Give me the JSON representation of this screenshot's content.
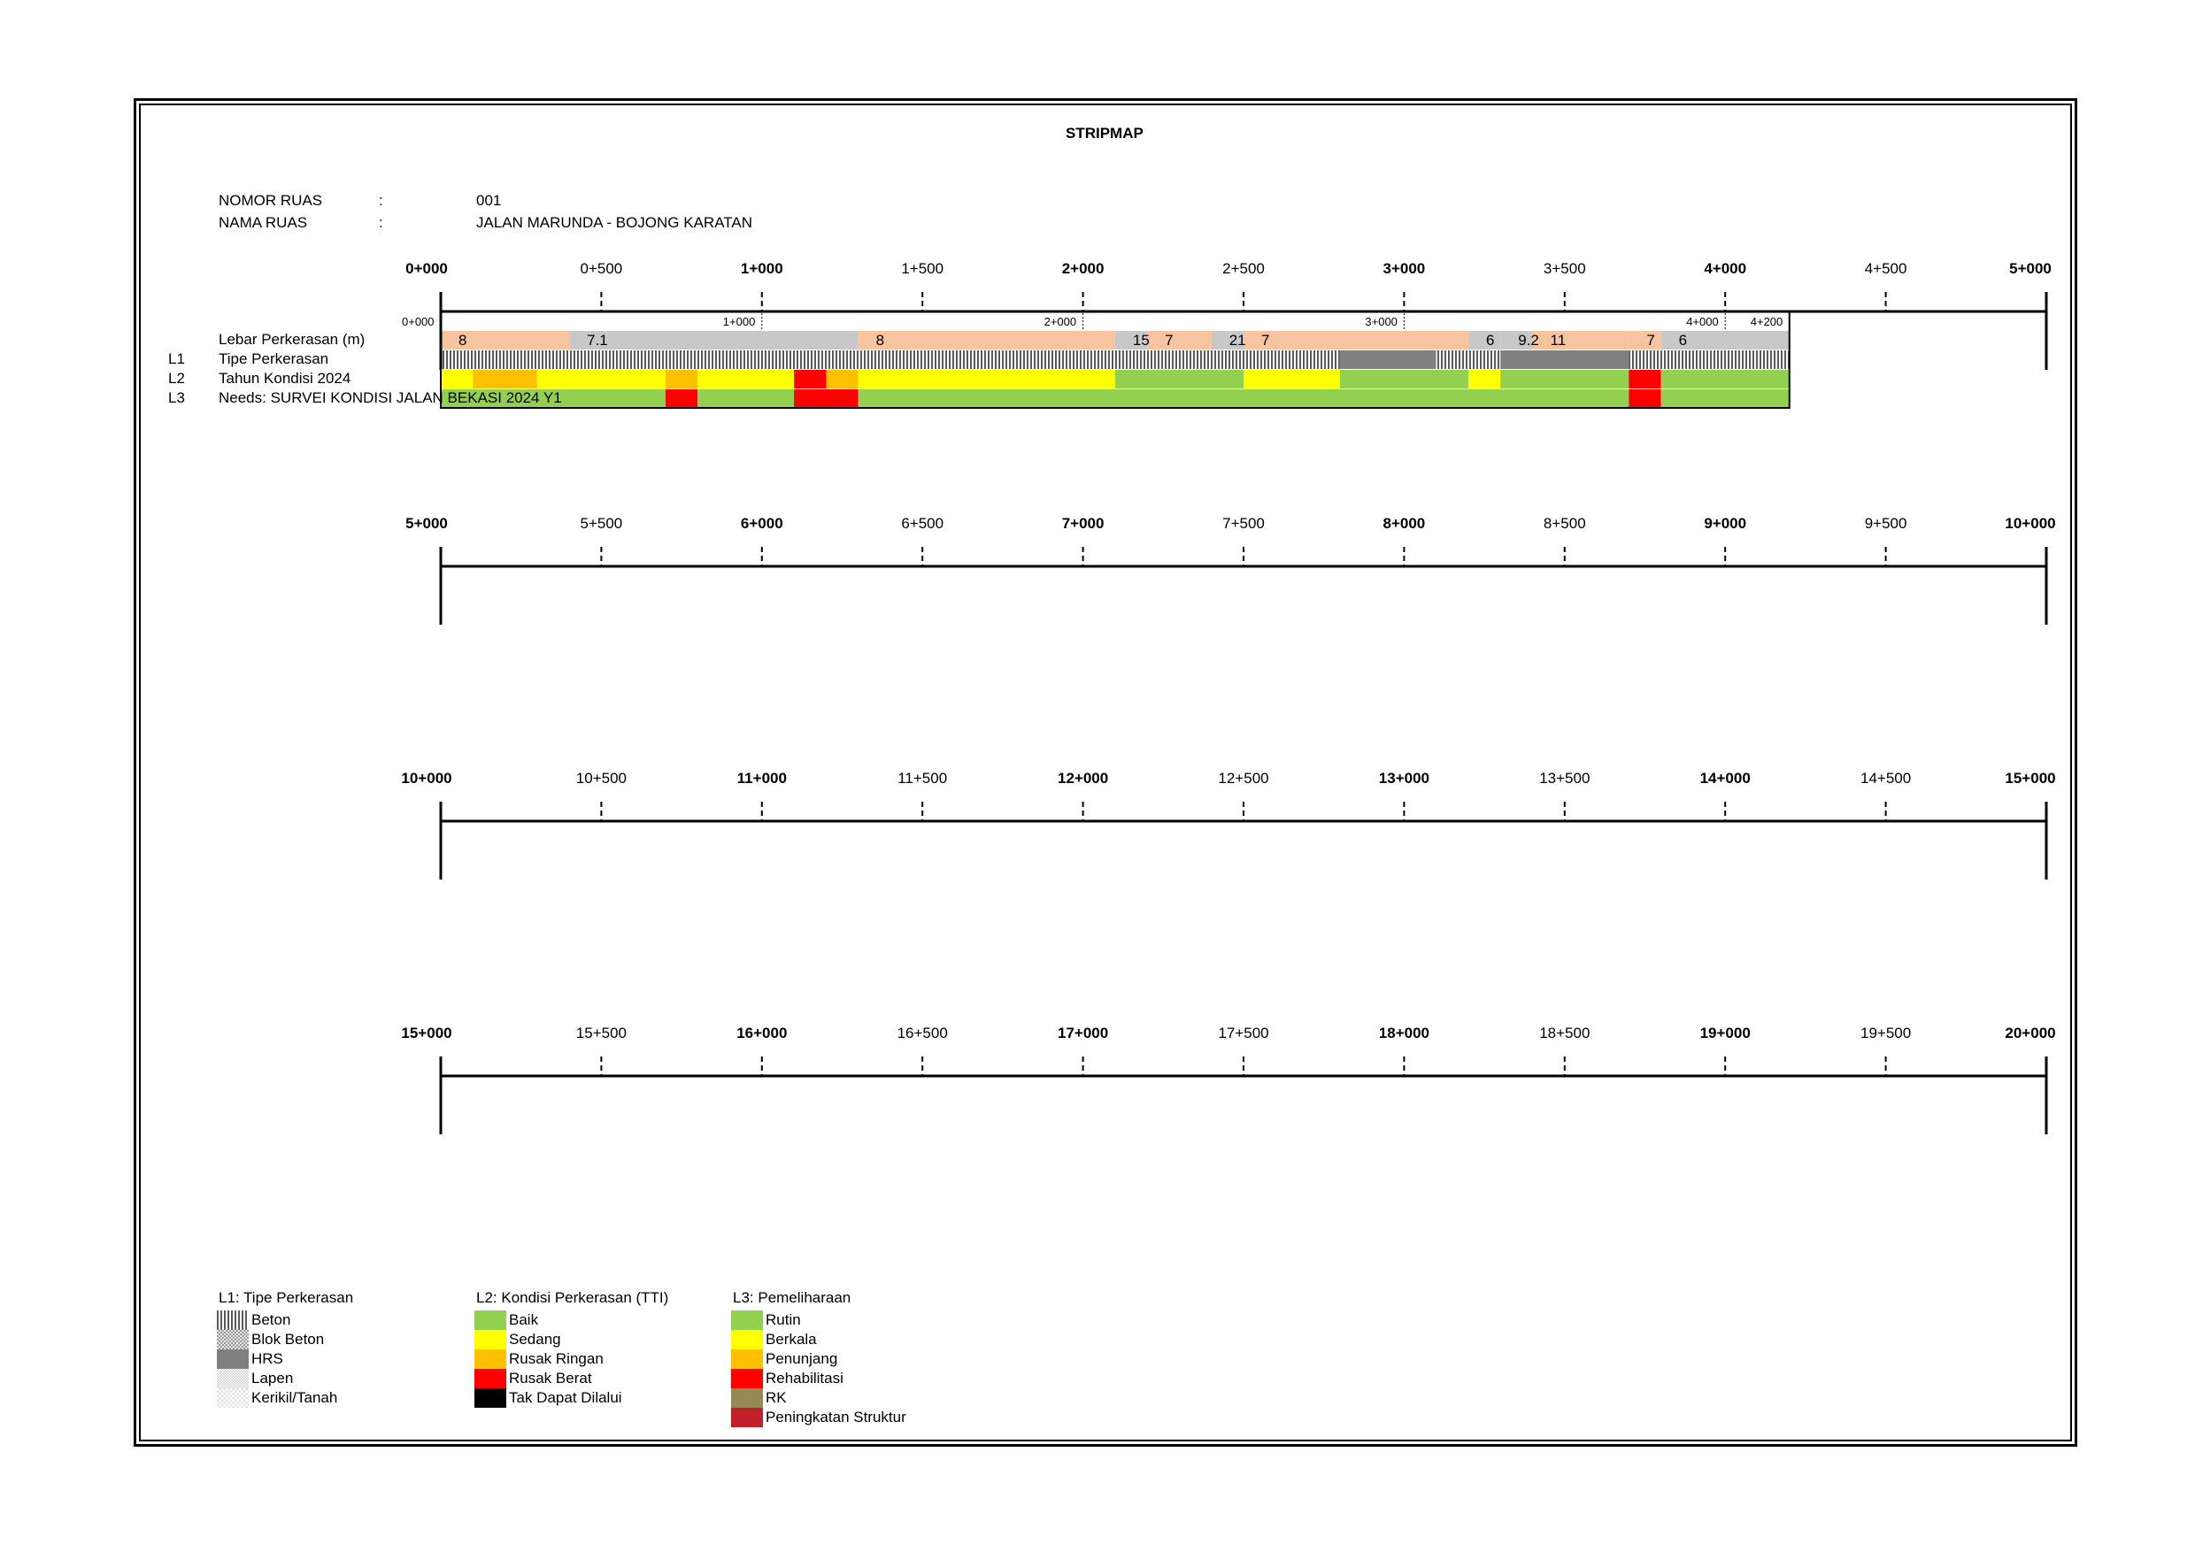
{
  "title": "STRIPMAP",
  "info": {
    "nomor_label": "NOMOR RUAS",
    "nama_label": "NAMA RUAS",
    "colon": ":",
    "nomor_value": "001",
    "nama_value": "JALAN MARUNDA - BOJONG KARATAN"
  },
  "rows": [
    {
      "code": "",
      "label": "Lebar Perkerasan (m)"
    },
    {
      "code": "L1",
      "label": "Tipe Perkerasan"
    },
    {
      "code": "L2",
      "label": "Tahun Kondisi 2024"
    },
    {
      "code": "L3",
      "label": "Needs: SURVEI KONDISI JALAN BEKASI 2024 Y1"
    }
  ],
  "axes": [
    {
      "labels": [
        "0+000",
        "0+500",
        "1+000",
        "1+500",
        "2+000",
        "2+500",
        "3+000",
        "3+500",
        "4+000",
        "4+500",
        "5+000"
      ]
    },
    {
      "labels": [
        "5+000",
        "5+500",
        "6+000",
        "6+500",
        "7+000",
        "7+500",
        "8+000",
        "8+500",
        "9+000",
        "9+500",
        "10+000"
      ]
    },
    {
      "labels": [
        "10+000",
        "10+500",
        "11+000",
        "11+500",
        "12+000",
        "12+500",
        "13+000",
        "13+500",
        "14+000",
        "14+500",
        "15+000"
      ]
    },
    {
      "labels": [
        "15+000",
        "15+500",
        "16+000",
        "16+500",
        "17+000",
        "17+500",
        "18+000",
        "18+500",
        "19+000",
        "19+500",
        "20+000"
      ]
    }
  ],
  "km_markers": [
    {
      "km": 0,
      "label": "0+000"
    },
    {
      "km": 1,
      "label": "1+000"
    },
    {
      "km": 2,
      "label": "2+000"
    },
    {
      "km": 3,
      "label": "3+000"
    },
    {
      "km": 4,
      "label": "4+000"
    },
    {
      "km": 4.2,
      "label": "4+200"
    }
  ],
  "colors": {
    "width_orange": "#f8c39f",
    "width_gray": "#c8c8c8",
    "baik": "#92d050",
    "sedang": "#ffff00",
    "rusak_ringan": "#ffc000",
    "rusak_berat": "#ff0000",
    "tak_dapat_dilalui": "#000000",
    "hrs": "#808080",
    "rk": "#948a54",
    "peningkatan_struktur": "#c0202a"
  },
  "width_segments": [
    {
      "from": 0.0,
      "to": 0.4,
      "value": "8",
      "color": "width_orange"
    },
    {
      "from": 0.4,
      "to": 1.3,
      "value": "7.1",
      "color": "width_gray"
    },
    {
      "from": 1.3,
      "to": 2.1,
      "value": "8",
      "color": "width_orange"
    },
    {
      "from": 2.1,
      "to": 2.2,
      "value": "15",
      "color": "width_gray"
    },
    {
      "from": 2.2,
      "to": 2.4,
      "value": "7",
      "color": "width_orange"
    },
    {
      "from": 2.4,
      "to": 2.5,
      "value": "21",
      "color": "width_gray"
    },
    {
      "from": 2.5,
      "to": 3.2,
      "value": "7",
      "color": "width_orange"
    },
    {
      "from": 3.2,
      "to": 3.3,
      "value": "6",
      "color": "width_gray"
    },
    {
      "from": 3.3,
      "to": 3.4,
      "value": "9.2",
      "color": "width_gray"
    },
    {
      "from": 3.4,
      "to": 3.7,
      "value": "11",
      "color": "width_orange"
    },
    {
      "from": 3.7,
      "to": 3.8,
      "value": "7",
      "color": "width_orange"
    },
    {
      "from": 3.8,
      "to": 4.2,
      "value": "6",
      "color": "width_gray"
    }
  ],
  "pavement_segments": [
    {
      "from": 0.0,
      "to": 2.8,
      "type": "beton"
    },
    {
      "from": 2.8,
      "to": 3.1,
      "type": "hrs"
    },
    {
      "from": 3.1,
      "to": 3.3,
      "type": "beton"
    },
    {
      "from": 3.3,
      "to": 3.7,
      "type": "hrs"
    },
    {
      "from": 3.7,
      "to": 4.2,
      "type": "beton"
    }
  ],
  "condition_segments": [
    {
      "from": 0.0,
      "to": 0.1,
      "color": "sedang"
    },
    {
      "from": 0.1,
      "to": 0.3,
      "color": "rusak_ringan"
    },
    {
      "from": 0.3,
      "to": 0.7,
      "color": "sedang"
    },
    {
      "from": 0.7,
      "to": 0.8,
      "color": "rusak_ringan"
    },
    {
      "from": 0.8,
      "to": 1.1,
      "color": "sedang"
    },
    {
      "from": 1.1,
      "to": 1.2,
      "color": "rusak_berat"
    },
    {
      "from": 1.2,
      "to": 1.3,
      "color": "rusak_ringan"
    },
    {
      "from": 1.3,
      "to": 2.1,
      "color": "sedang"
    },
    {
      "from": 2.1,
      "to": 2.5,
      "color": "baik"
    },
    {
      "from": 2.5,
      "to": 2.8,
      "color": "sedang"
    },
    {
      "from": 2.8,
      "to": 3.2,
      "color": "baik"
    },
    {
      "from": 3.2,
      "to": 3.3,
      "color": "sedang"
    },
    {
      "from": 3.3,
      "to": 3.7,
      "color": "baik"
    },
    {
      "from": 3.7,
      "to": 3.8,
      "color": "rusak_berat"
    },
    {
      "from": 3.8,
      "to": 4.2,
      "color": "baik"
    }
  ],
  "needs_segments": [
    {
      "from": 0.0,
      "to": 0.7,
      "color": "baik"
    },
    {
      "from": 0.7,
      "to": 0.8,
      "color": "rusak_berat"
    },
    {
      "from": 0.8,
      "to": 1.1,
      "color": "baik"
    },
    {
      "from": 1.1,
      "to": 1.3,
      "color": "rusak_berat"
    },
    {
      "from": 1.3,
      "to": 3.7,
      "color": "baik"
    },
    {
      "from": 3.7,
      "to": 3.8,
      "color": "rusak_berat"
    },
    {
      "from": 3.8,
      "to": 4.2,
      "color": "baik"
    }
  ],
  "legend": {
    "l1": {
      "title": "L1: Tipe Perkerasan",
      "items": [
        {
          "label": "Beton",
          "swatch": "beton"
        },
        {
          "label": "Blok Beton",
          "swatch": "blok"
        },
        {
          "label": "HRS",
          "swatch": "hrs"
        },
        {
          "label": "Lapen",
          "swatch": "lapen"
        },
        {
          "label": "Kerikil/Tanah",
          "swatch": "kerikil"
        }
      ]
    },
    "l2": {
      "title": "L2: Kondisi Perkerasan (TTI)",
      "items": [
        {
          "label": "Baik",
          "color": "#92d050"
        },
        {
          "label": "Sedang",
          "color": "#ffff00"
        },
        {
          "label": "Rusak Ringan",
          "color": "#ffc000"
        },
        {
          "label": "Rusak Berat",
          "color": "#ff0000"
        },
        {
          "label": "Tak Dapat Dilalui",
          "color": "#000000"
        }
      ]
    },
    "l3": {
      "title": "L3: Pemeliharaan",
      "items": [
        {
          "label": "Rutin",
          "color": "#92d050"
        },
        {
          "label": "Berkala",
          "color": "#ffff00"
        },
        {
          "label": "Penunjang",
          "color": "#ffc000"
        },
        {
          "label": "Rehabilitasi",
          "color": "#ff0000"
        },
        {
          "label": "RK",
          "color": "#948a54"
        },
        {
          "label": "Peningkatan Struktur",
          "color": "#c0202a"
        }
      ]
    }
  }
}
